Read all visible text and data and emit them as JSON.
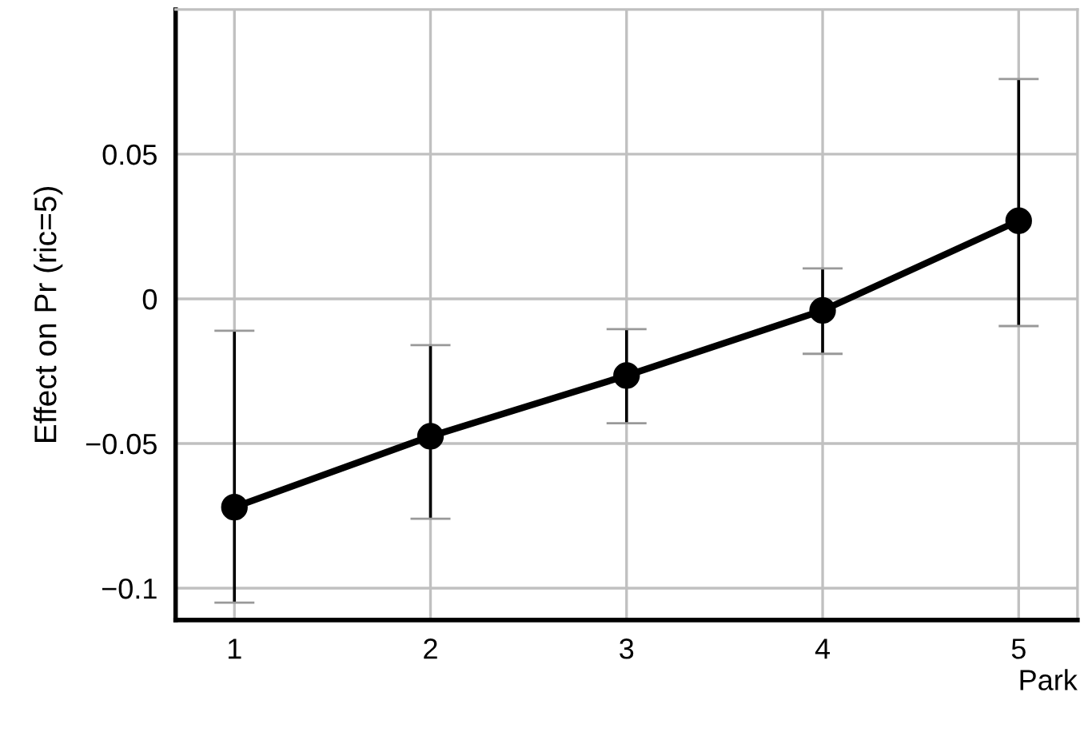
{
  "chart_data": {
    "type": "line",
    "xlabel": "Park",
    "ylabel": "Effect on Pr (ric=5)",
    "x": [
      1,
      2,
      3,
      4,
      5
    ],
    "series": [
      {
        "color": "#000000",
        "values": [
          -0.072,
          -0.0475,
          -0.0265,
          -0.004,
          0.027
        ],
        "errors": [
          [
            -0.105,
            -0.011
          ],
          [
            -0.076,
            -0.016
          ],
          [
            -0.043,
            -0.0105
          ],
          [
            -0.019,
            0.0105
          ],
          [
            -0.0094,
            0.076
          ]
        ]
      }
    ],
    "xlim": [
      0.7,
      5.3
    ],
    "xticks": [
      1,
      2,
      3,
      4,
      5
    ],
    "ylim": [
      -0.111,
      0.1
    ],
    "yticks": [
      {
        "value": -0.1,
        "label": "−0.1"
      },
      {
        "value": -0.05,
        "label": "−0.05"
      },
      {
        "value": 0,
        "label": "0"
      },
      {
        "value": 0.05,
        "label": "0.05"
      }
    ],
    "grid": true,
    "marker": "circle",
    "line_style": "solid"
  }
}
